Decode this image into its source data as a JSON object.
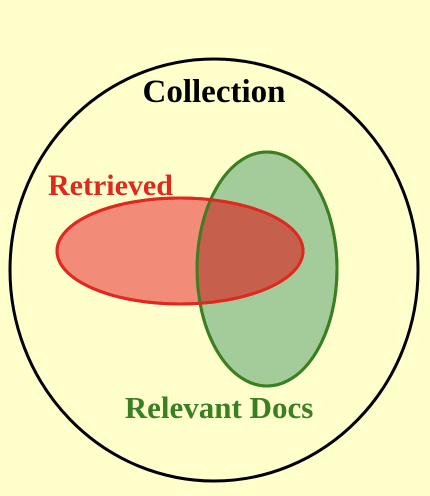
{
  "diagram": {
    "collection_label": "Collection",
    "retrieved_label": "Retrieved",
    "relevant_label": "Relevant Docs"
  },
  "colors": {
    "background": "#ffffcc",
    "collection_stroke": "#000000",
    "retrieved_fill": "#f28c78",
    "retrieved_stroke": "#e0281e",
    "relevant_fill": "#a4cc9a",
    "relevant_stroke": "#3a7f22",
    "overlap_fill": "#c65f4c"
  }
}
